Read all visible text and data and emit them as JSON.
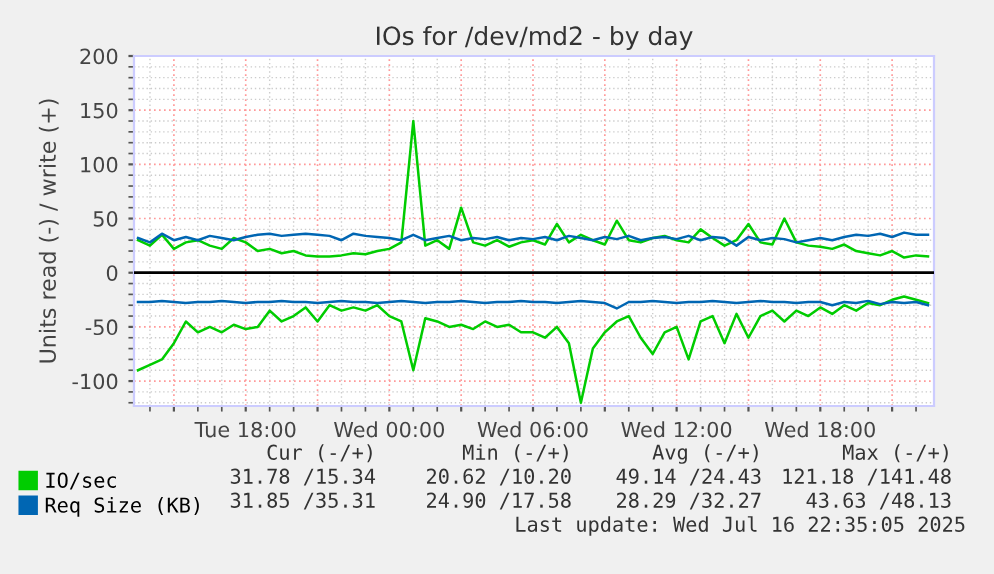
{
  "chart_data": {
    "type": "line",
    "title": "IOs for /dev/md2 - by day",
    "ylabel": "Units read (-) / write (+)",
    "x": [
      "2025-07-15T13:30",
      "2025-07-15T14:00",
      "2025-07-15T14:30",
      "2025-07-15T15:00",
      "2025-07-15T15:30",
      "2025-07-15T16:00",
      "2025-07-15T16:30",
      "2025-07-15T17:00",
      "2025-07-15T17:30",
      "2025-07-15T18:00",
      "2025-07-15T18:30",
      "2025-07-15T19:00",
      "2025-07-15T19:30",
      "2025-07-15T20:00",
      "2025-07-15T20:30",
      "2025-07-15T21:00",
      "2025-07-15T21:30",
      "2025-07-15T22:00",
      "2025-07-15T22:30",
      "2025-07-15T23:00",
      "2025-07-15T23:30",
      "2025-07-16T00:00",
      "2025-07-16T00:30",
      "2025-07-16T01:00",
      "2025-07-16T01:30",
      "2025-07-16T02:00",
      "2025-07-16T02:30",
      "2025-07-16T03:00",
      "2025-07-16T03:30",
      "2025-07-16T04:00",
      "2025-07-16T04:30",
      "2025-07-16T05:00",
      "2025-07-16T05:30",
      "2025-07-16T06:00",
      "2025-07-16T06:30",
      "2025-07-16T07:00",
      "2025-07-16T07:30",
      "2025-07-16T08:00",
      "2025-07-16T08:30",
      "2025-07-16T09:00",
      "2025-07-16T09:30",
      "2025-07-16T10:00",
      "2025-07-16T10:30",
      "2025-07-16T11:00",
      "2025-07-16T11:30",
      "2025-07-16T12:00",
      "2025-07-16T12:30",
      "2025-07-16T13:00",
      "2025-07-16T13:30",
      "2025-07-16T14:00",
      "2025-07-16T14:30",
      "2025-07-16T15:00",
      "2025-07-16T15:30",
      "2025-07-16T16:00",
      "2025-07-16T16:30",
      "2025-07-16T17:00",
      "2025-07-16T17:30",
      "2025-07-16T18:00",
      "2025-07-16T18:30",
      "2025-07-16T19:00",
      "2025-07-16T19:30",
      "2025-07-16T20:00",
      "2025-07-16T20:30",
      "2025-07-16T21:00",
      "2025-07-16T21:30",
      "2025-07-16T22:00",
      "2025-07-16T22:30"
    ],
    "series": [
      {
        "name": "IO/sec",
        "color": "#00cc00",
        "values": [
          30,
          25,
          35,
          22,
          28,
          30,
          25,
          22,
          32,
          28,
          20,
          22,
          18,
          20,
          16,
          15,
          15,
          16,
          18,
          17,
          20,
          22,
          28,
          140,
          25,
          30,
          22,
          60,
          28,
          25,
          30,
          24,
          28,
          30,
          26,
          45,
          28,
          35,
          30,
          26,
          48,
          30,
          28,
          32,
          34,
          30,
          28,
          40,
          32,
          25,
          30,
          45,
          28,
          26,
          50,
          28,
          25,
          24,
          22,
          26,
          20,
          18,
          16,
          20,
          14,
          16,
          15
        ]
      },
      {
        "color": "#00cc00",
        "values": [
          -90,
          -85,
          -80,
          -65,
          -45,
          -55,
          -50,
          -55,
          -48,
          -52,
          -50,
          -35,
          -45,
          -40,
          -32,
          -45,
          -30,
          -35,
          -32,
          -35,
          -30,
          -40,
          -45,
          -90,
          -42,
          -45,
          -50,
          -48,
          -52,
          -45,
          -50,
          -48,
          -55,
          -55,
          -60,
          -50,
          -65,
          -120,
          -70,
          -55,
          -45,
          -40,
          -60,
          -75,
          -55,
          -50,
          -80,
          -45,
          -40,
          -65,
          -38,
          -60,
          -40,
          -35,
          -45,
          -35,
          -40,
          -32,
          -38,
          -30,
          -35,
          -28,
          -30,
          -25,
          -22,
          -25,
          -28
        ]
      },
      {
        "name": "Req Size (KB)",
        "color": "#0066b3",
        "values": [
          32,
          28,
          36,
          30,
          33,
          30,
          34,
          32,
          30,
          33,
          35,
          36,
          34,
          35,
          36,
          35,
          34,
          30,
          36,
          34,
          33,
          32,
          30,
          35,
          30,
          32,
          34,
          30,
          32,
          31,
          33,
          30,
          32,
          31,
          33,
          30,
          34,
          32,
          30,
          33,
          31,
          34,
          30,
          32,
          33,
          31,
          34,
          30,
          33,
          32,
          25,
          33,
          30,
          32,
          31,
          28,
          30,
          32,
          30,
          33,
          35,
          34,
          36,
          33,
          37,
          35,
          35
        ]
      },
      {
        "color": "#0066b3",
        "values": [
          -27,
          -27,
          -26,
          -27,
          -28,
          -27,
          -27,
          -26,
          -27,
          -28,
          -27,
          -27,
          -26,
          -27,
          -27,
          -28,
          -27,
          -26,
          -27,
          -27,
          -28,
          -27,
          -26,
          -27,
          -28,
          -27,
          -27,
          -26,
          -27,
          -28,
          -27,
          -27,
          -26,
          -27,
          -27,
          -28,
          -27,
          -26,
          -27,
          -28,
          -33,
          -27,
          -27,
          -26,
          -27,
          -28,
          -27,
          -27,
          -26,
          -27,
          -28,
          -27,
          -26,
          -27,
          -27,
          -28,
          -27,
          -27,
          -30,
          -27,
          -28,
          -26,
          -29,
          -27,
          -28,
          -27,
          -30
        ]
      }
    ],
    "xlim": [
      "2025-07-15T13:20",
      "2025-07-16T22:45"
    ],
    "xticks": [
      {
        "value": "2025-07-15T15:00",
        "label": null
      },
      {
        "value": "2025-07-15T18:00",
        "label": "Tue 18:00"
      },
      {
        "value": "2025-07-15T21:00",
        "label": null
      },
      {
        "value": "2025-07-16T00:00",
        "label": "Wed 00:00"
      },
      {
        "value": "2025-07-16T03:00",
        "label": null
      },
      {
        "value": "2025-07-16T06:00",
        "label": "Wed 06:00"
      },
      {
        "value": "2025-07-16T09:00",
        "label": null
      },
      {
        "value": "2025-07-16T12:00",
        "label": "Wed 12:00"
      },
      {
        "value": "2025-07-16T15:00",
        "label": null
      },
      {
        "value": "2025-07-16T18:00",
        "label": "Wed 18:00"
      },
      {
        "value": "2025-07-16T21:00",
        "label": null
      }
    ],
    "ylim": [
      -123,
      200
    ],
    "yticks": [
      -100,
      -50,
      0,
      50,
      100,
      150,
      200
    ],
    "ref_lines": [
      {
        "axis": "y",
        "value": 0,
        "color": "#000000"
      }
    ],
    "grid": true,
    "legend": "bottom left",
    "line_style": "solid",
    "annotations": [
      "Cur (-/+)",
      "Min (-/+)",
      "Avg (-/+)",
      "Max (-/+)",
      "31.78 /15.34",
      "20.62 /10.20",
      "49.14 /24.43",
      "121.18 /141.48",
      "31.85 /35.31",
      "24.90 /17.58",
      "28.29 /32.27",
      "43.63 /48.13",
      "Last update: Wed Jul 16 22:35:05 2025"
    ]
  }
}
